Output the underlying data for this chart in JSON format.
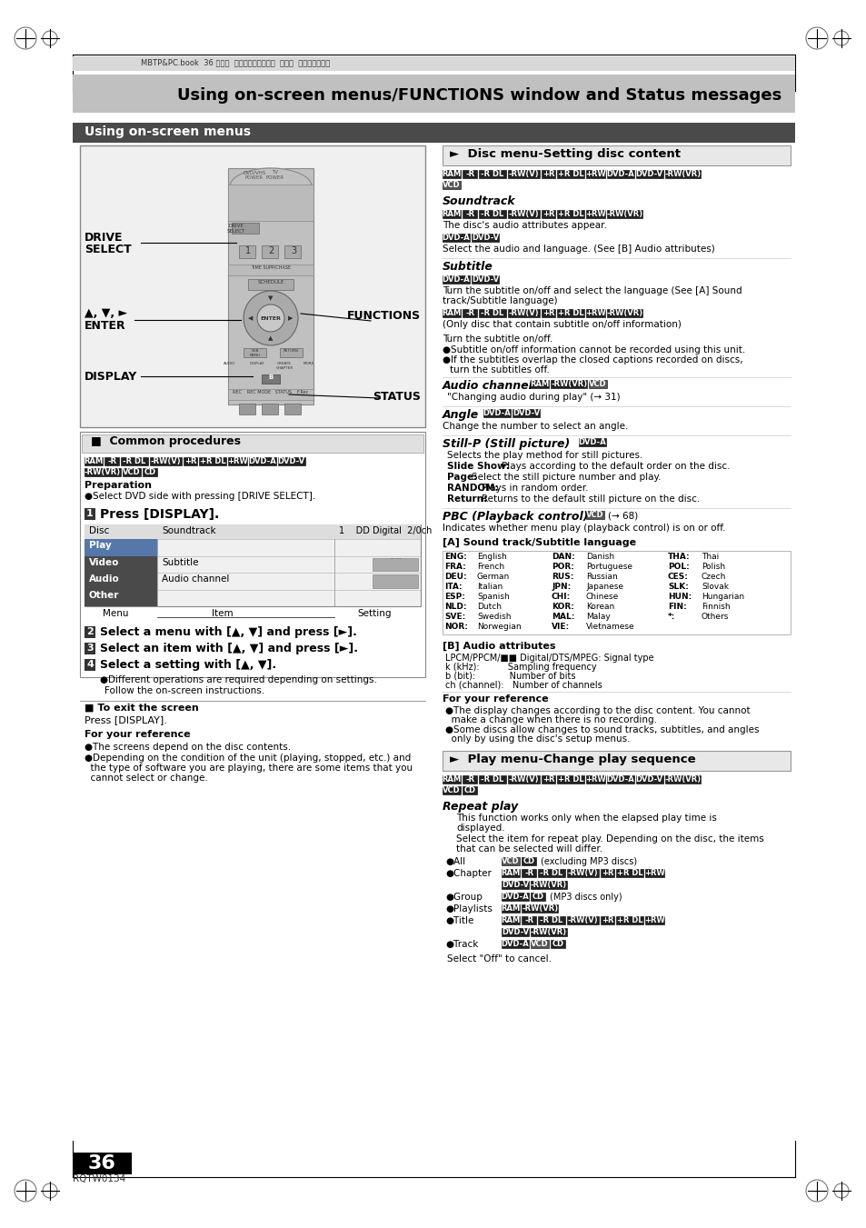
{
  "page_bg": "#ffffff",
  "header_bg": "#c8c8c8",
  "header_text": "Using on-screen menus/FUNCTIONS window and Status messages",
  "section_header_bg": "#4a4a4a",
  "section_header_text": "Using on-screen menus",
  "top_bar_text": "MBTP&PC.book  36 ページ  ２００６年２月６日  月曜日  午後３時２０分",
  "page_number": "36",
  "model": "RQTW0134",
  "disc_section_header": "►  Disc menu-Setting disc content",
  "play_section_header": "►  Play menu-Change play sequence",
  "common_procedures_header": "■  Common procedures"
}
